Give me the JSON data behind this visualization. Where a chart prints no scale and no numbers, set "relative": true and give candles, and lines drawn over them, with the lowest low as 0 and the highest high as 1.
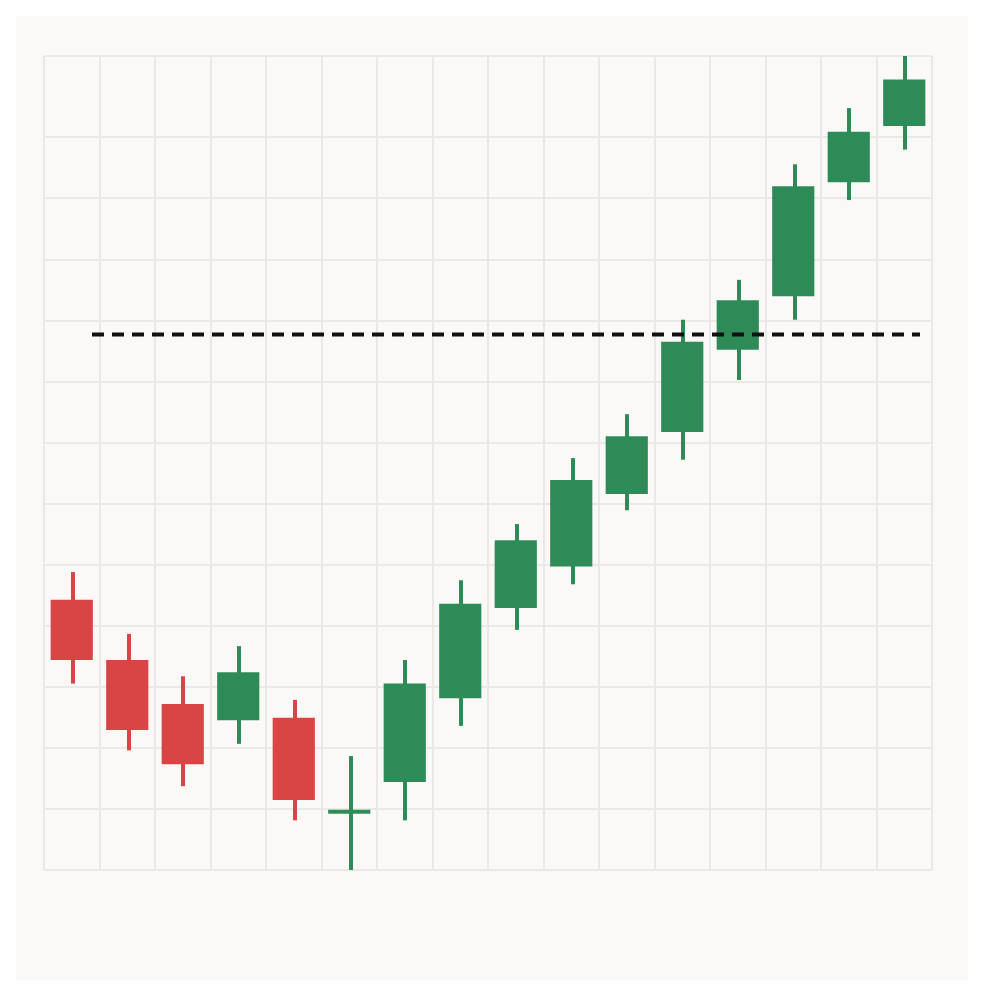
{
  "chart_data": {
    "type": "candlestick",
    "relative": true,
    "grid": true,
    "categories": [
      null,
      null,
      null,
      null,
      null,
      null,
      null,
      null,
      null,
      null,
      null,
      null,
      null,
      null,
      null,
      null
    ],
    "ohlc": [
      [
        0.332,
        0.366,
        0.229,
        0.258
      ],
      [
        0.258,
        0.29,
        0.147,
        0.172
      ],
      [
        0.204,
        0.238,
        0.103,
        0.13
      ],
      [
        0.184,
        0.275,
        0.155,
        0.243
      ],
      [
        0.187,
        0.209,
        0.061,
        0.086
      ],
      [
        0.069,
        0.14,
        0,
        0.074
      ],
      [
        0.108,
        0.258,
        0.061,
        0.229
      ],
      [
        0.211,
        0.356,
        0.177,
        0.327
      ],
      [
        0.322,
        0.425,
        0.295,
        0.405
      ],
      [
        0.373,
        0.506,
        0.351,
        0.479
      ],
      [
        0.462,
        0.56,
        0.442,
        0.533
      ],
      [
        0.538,
        0.676,
        0.504,
        0.649
      ],
      [
        0.639,
        0.725,
        0.602,
        0.7
      ],
      [
        0.705,
        0.867,
        0.676,
        0.84
      ],
      [
        0.845,
        0.936,
        0.823,
        0.907
      ],
      [
        0.914,
        1,
        0.885,
        0.971
      ]
    ],
    "colors": [
      "#d94444",
      "#d94444",
      "#d94444",
      "#2e8b57",
      "#d94444",
      "#2e8b57",
      "#2e8b57",
      "#2e8b57",
      "#2e8b57",
      "#2e8b57",
      "#2e8b57",
      "#2e8b57",
      "#2e8b57",
      "#2e8b57",
      "#2e8b57",
      "#2e8b57"
    ],
    "ref_lines": [
      {
        "axis": "y",
        "value": 0.658,
        "color": "#111111",
        "line_style": "dashed"
      }
    ]
  }
}
